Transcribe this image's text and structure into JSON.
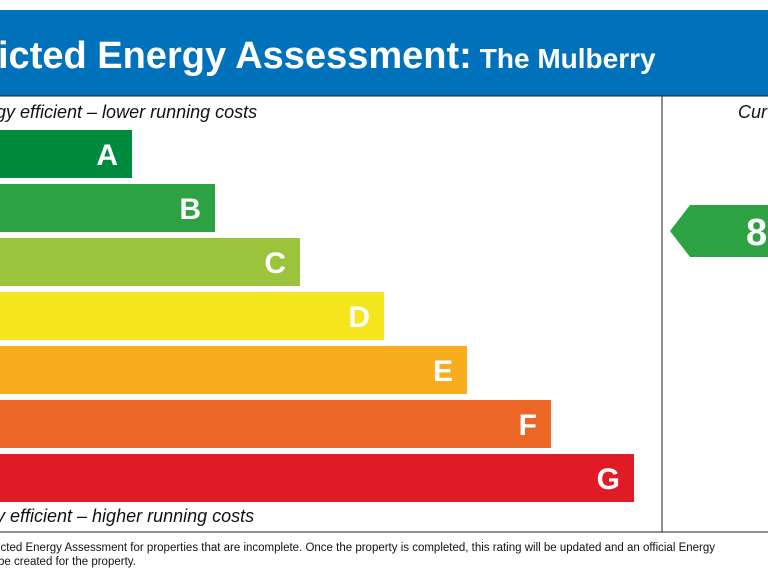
{
  "header": {
    "title": "icted Energy Assessment:",
    "subtitle": "The Mulberry"
  },
  "scale": {
    "top_note": "gy efficient – lower running costs",
    "bottom_note": "y efficient – higher running costs",
    "bands": [
      "A",
      "B",
      "C",
      "D",
      "E",
      "F",
      "G"
    ]
  },
  "current": {
    "heading": "Cur",
    "rating": "8"
  },
  "footer": {
    "lines": [
      "icted Energy Assessment for properties that are incomplete. Once the property is completed, this rating will be updated and an official Energy",
      "be created for the property."
    ]
  }
}
